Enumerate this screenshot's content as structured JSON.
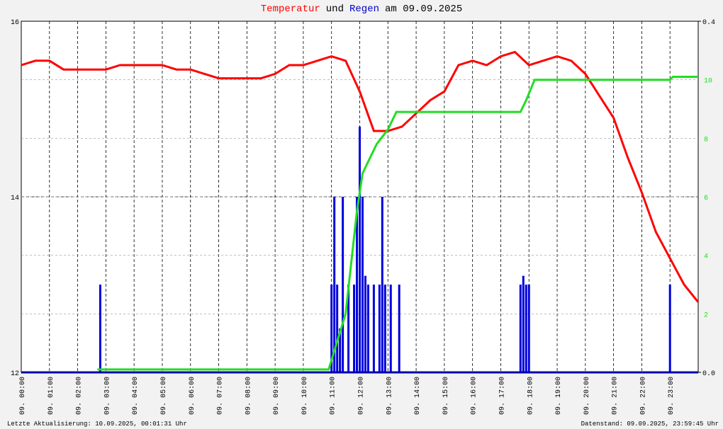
{
  "chart_data": {
    "type": "line",
    "title_parts": [
      {
        "text": "Temperatur",
        "color": "#ff0000"
      },
      {
        "text": "und",
        "color": "#000000"
      },
      {
        "text": "Regen",
        "color": "#0000cc"
      },
      {
        "text": "am 09.09.2025",
        "color": "#000000"
      }
    ],
    "footer_left": "Letzte Aktualisierung: 10.09.2025, 00:01:31 Uhr",
    "footer_right": "Datenstand: 09.09.2025, 23:59:45 Uhr",
    "xlim": [
      0,
      24
    ],
    "xticks": [
      {
        "value": 0,
        "label": "09. 00:00"
      },
      {
        "value": 1,
        "label": "09. 01:00"
      },
      {
        "value": 2,
        "label": "09. 02:00"
      },
      {
        "value": 3,
        "label": "09. 03:00"
      },
      {
        "value": 4,
        "label": "09. 04:00"
      },
      {
        "value": 5,
        "label": "09. 05:00"
      },
      {
        "value": 6,
        "label": "09. 06:00"
      },
      {
        "value": 7,
        "label": "09. 07:00"
      },
      {
        "value": 8,
        "label": "09. 08:00"
      },
      {
        "value": 9,
        "label": "09. 09:00"
      },
      {
        "value": 10,
        "label": "09. 10:00"
      },
      {
        "value": 11,
        "label": "09. 11:00"
      },
      {
        "value": 12,
        "label": "09. 12:00"
      },
      {
        "value": 13,
        "label": "09. 13:00"
      },
      {
        "value": 14,
        "label": "09. 14:00"
      },
      {
        "value": 15,
        "label": "09. 15:00"
      },
      {
        "value": 16,
        "label": "09. 16:00"
      },
      {
        "value": 17,
        "label": "09. 17:00"
      },
      {
        "value": 18,
        "label": "09. 18:00"
      },
      {
        "value": 19,
        "label": "09. 19:00"
      },
      {
        "value": 20,
        "label": "09. 20:00"
      },
      {
        "value": 21,
        "label": "09. 21:00"
      },
      {
        "value": 22,
        "label": "09. 22:00"
      },
      {
        "value": 23,
        "label": "09. 23:00"
      }
    ],
    "ylim": [
      12,
      16
    ],
    "yticks": [
      12,
      14,
      16
    ],
    "y2lim": [
      0,
      0.4
    ],
    "y2ticks": [
      {
        "value": 0,
        "label": "0.0"
      },
      0.4
    ],
    "y3lim": [
      0,
      12
    ],
    "y3ticks": [
      2,
      4,
      6,
      8,
      10
    ],
    "y3color": "#22dd22",
    "series": [
      {
        "kind": "line",
        "axis": "y",
        "color": "#ff0000",
        "x": [
          0,
          0.5,
          1,
          1.5,
          2,
          2.5,
          3,
          3.5,
          4,
          4.5,
          5,
          5.5,
          6,
          6.5,
          7,
          7.5,
          8,
          8.5,
          9,
          9.5,
          10,
          10.5,
          11,
          11.5,
          12,
          12.5,
          13,
          13.5,
          14,
          14.5,
          15,
          15.5,
          16,
          16.5,
          17,
          17.5,
          18,
          18.5,
          19,
          19.5,
          20,
          20.5,
          21,
          21.5,
          22,
          22.5,
          23,
          23.5,
          24
        ],
        "values": [
          15.5,
          15.55,
          15.55,
          15.45,
          15.45,
          15.45,
          15.45,
          15.5,
          15.5,
          15.5,
          15.5,
          15.45,
          15.45,
          15.4,
          15.35,
          15.35,
          15.35,
          15.35,
          15.4,
          15.5,
          15.5,
          15.55,
          15.6,
          15.55,
          15.2,
          14.75,
          14.75,
          14.8,
          14.95,
          15.1,
          15.2,
          15.5,
          15.55,
          15.5,
          15.6,
          15.65,
          15.5,
          15.55,
          15.6,
          15.55,
          15.4,
          15.15,
          14.9,
          14.45,
          14.05,
          13.6,
          13.3,
          13.0,
          12.8
        ]
      },
      {
        "kind": "bar",
        "axis": "y2",
        "color": "#0000dd",
        "x": [
          2.8,
          11.0,
          11.1,
          11.2,
          11.3,
          11.4,
          11.6,
          11.8,
          11.9,
          12.0,
          12.1,
          12.2,
          12.3,
          12.5,
          12.7,
          12.8,
          12.9,
          13.1,
          13.4,
          17.7,
          17.8,
          17.9,
          18.0,
          23.0
        ],
        "values": [
          0.1,
          0.1,
          0.2,
          0.1,
          0.05,
          0.2,
          0.1,
          0.1,
          0.2,
          0.28,
          0.2,
          0.11,
          0.1,
          0.1,
          0.1,
          0.2,
          0.1,
          0.1,
          0.1,
          0.1,
          0.11,
          0.1,
          0.1,
          0.1
        ]
      },
      {
        "kind": "line",
        "axis": "y3",
        "color": "#22dd22",
        "x": [
          2.7,
          10.9,
          11.5,
          11.9,
          12.1,
          12.3,
          12.6,
          13.0,
          13.3,
          17.7,
          17.9,
          18.2,
          23.0,
          23.1,
          24
        ],
        "values": [
          0.1,
          0.1,
          2,
          5.5,
          6.8,
          7.2,
          7.8,
          8.3,
          8.9,
          8.9,
          9.3,
          10,
          10,
          10.1,
          10.1
        ]
      }
    ]
  }
}
